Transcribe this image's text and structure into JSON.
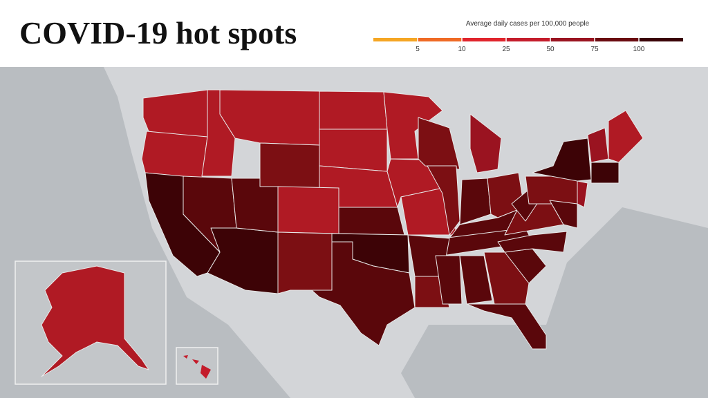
{
  "header": {
    "title": "COVID-19 hot spots"
  },
  "legend": {
    "title": "Average daily cases per 100,000 people",
    "ticks": [
      5,
      10,
      25,
      50,
      75,
      100
    ],
    "colors": [
      "#f5a623",
      "#ef6a25",
      "#e0242c",
      "#c41c2b",
      "#9a1320",
      "#6a0a10",
      "#3a0307"
    ]
  }
}
